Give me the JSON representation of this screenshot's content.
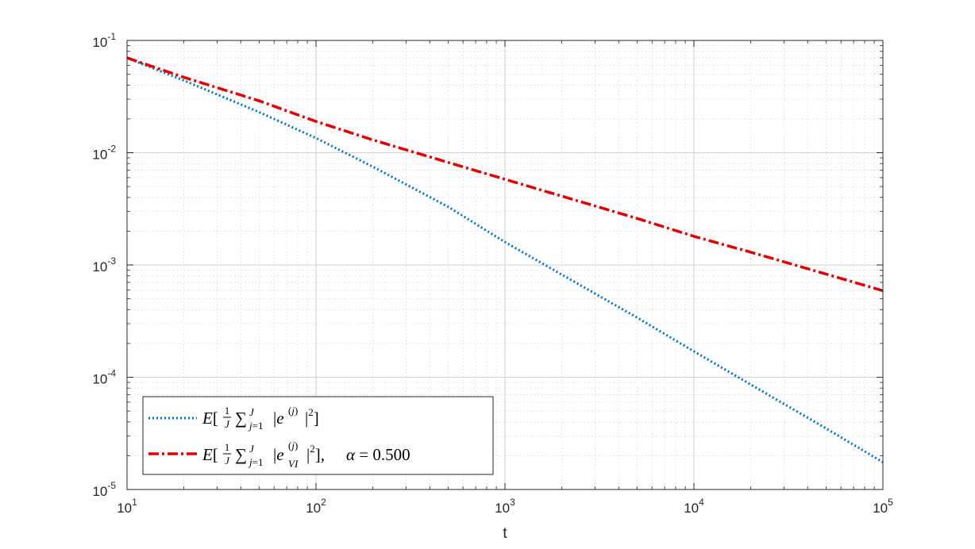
{
  "chart_data": {
    "type": "line",
    "xlabel": "t",
    "ylabel": "",
    "xscale": "log",
    "yscale": "log",
    "xlim": [
      10,
      100000
    ],
    "ylim": [
      1e-05,
      0.1
    ],
    "grid": true,
    "minor_grid": true,
    "legend_position": "bottom-left",
    "x_ticks": [
      {
        "base": "10",
        "exp": "1"
      },
      {
        "base": "10",
        "exp": "2"
      },
      {
        "base": "10",
        "exp": "3"
      },
      {
        "base": "10",
        "exp": "4"
      },
      {
        "base": "10",
        "exp": "5"
      }
    ],
    "y_ticks": [
      {
        "base": "10",
        "exp": "-1"
      },
      {
        "base": "10",
        "exp": "-2"
      },
      {
        "base": "10",
        "exp": "-3"
      },
      {
        "base": "10",
        "exp": "-4"
      },
      {
        "base": "10",
        "exp": "-5"
      }
    ],
    "series": [
      {
        "name": "E[1/J Σ_{j=1}^{J} |e^{(j)}|^2]",
        "color": "#0072BD",
        "style": "dotted",
        "x": [
          10,
          20,
          50,
          100,
          200,
          500,
          1000,
          2000,
          5000,
          10000,
          20000,
          50000,
          100000
        ],
        "y": [
          0.07,
          0.044,
          0.023,
          0.0135,
          0.0075,
          0.0033,
          0.0016,
          0.00082,
          0.00034,
          0.00017,
          8.6e-05,
          3.5e-05,
          1.75e-05
        ]
      },
      {
        "name": "E[1/J Σ_{j=1}^{J} |e_{VI}^{(j)}|^2], α = 0.500",
        "color": "#E00000",
        "style": "dash-dot",
        "x": [
          10,
          20,
          50,
          100,
          200,
          500,
          1000,
          2000,
          5000,
          10000,
          20000,
          50000,
          100000
        ],
        "y": [
          0.07,
          0.047,
          0.029,
          0.019,
          0.013,
          0.0082,
          0.0058,
          0.0041,
          0.0026,
          0.0018,
          0.0013,
          0.00083,
          0.00059
        ]
      }
    ]
  }
}
